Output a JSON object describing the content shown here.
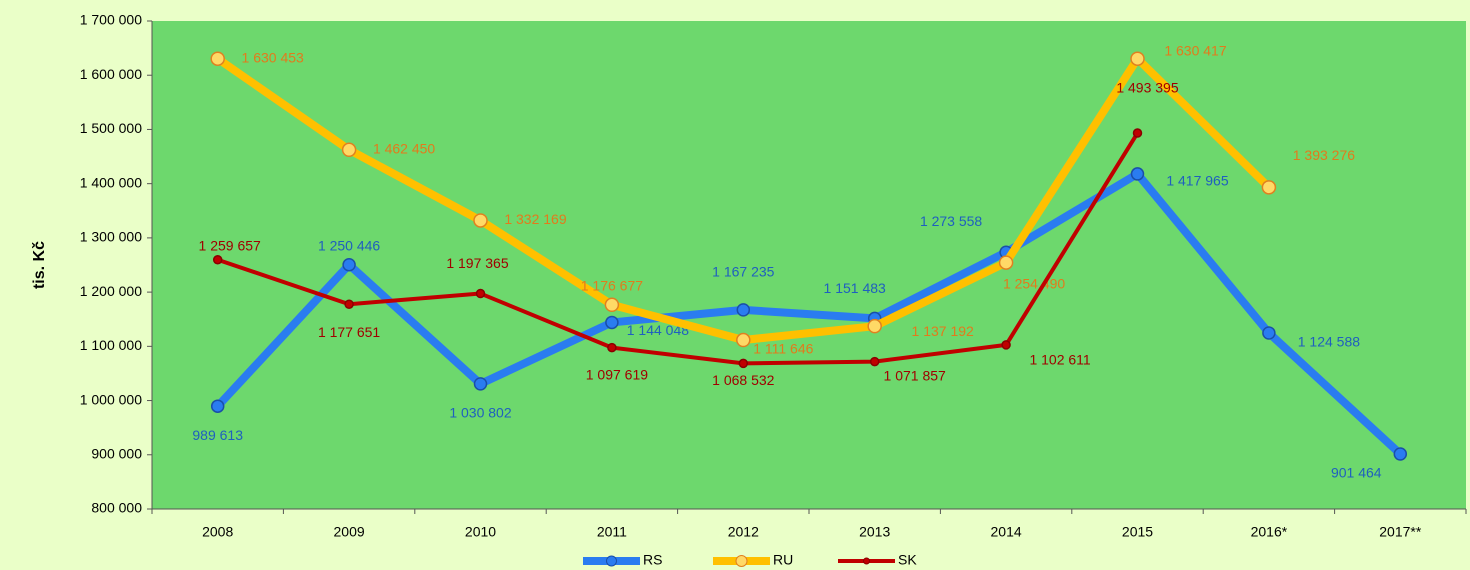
{
  "chart_data": {
    "type": "line",
    "ylabel": "tis. Kč",
    "categories": [
      "2008",
      "2009",
      "2010",
      "2011",
      "2012",
      "2013",
      "2014",
      "2015",
      "2016*",
      "2017**"
    ],
    "series": [
      {
        "name": "RS",
        "color": "#2a7cf0",
        "label_color": "#1f5fbf",
        "values": [
          989613,
          1250446,
          1030802,
          1144048,
          1167235,
          1151483,
          1273558,
          1417965,
          1124588,
          901464
        ],
        "value_labels": [
          "989 613",
          "1 250 446",
          "1 030 802",
          "1 144 048",
          "1 167 235",
          "1 151 483",
          "1 273 558",
          "1 417 965",
          "1 124 588",
          "901 464"
        ]
      },
      {
        "name": "RU",
        "color": "#ffc000",
        "label_color": "#e27a1c",
        "values": [
          1630453,
          1462450,
          1332169,
          1176677,
          1111646,
          1137192,
          1254490,
          1630417,
          1393276,
          null
        ],
        "value_labels": [
          "1 630 453",
          "1 462 450",
          "1 332 169",
          "1 176 677",
          "1 111 646",
          "1 137 192",
          "1 254 490",
          "1 630 417",
          "1 393 276",
          null
        ]
      },
      {
        "name": "SK",
        "color": "#c00000",
        "label_color": "#a00000",
        "values": [
          1259657,
          1177651,
          1197365,
          1097619,
          1068532,
          1071857,
          1102611,
          1493395,
          null,
          null
        ],
        "value_labels": [
          "1 259 657",
          "1 177 651",
          "1 197 365",
          "1 097 619",
          "1 068 532",
          "1 071 857",
          "1 102 611",
          "1 493 395",
          null,
          null
        ]
      }
    ],
    "ylim": [
      800000,
      1700000
    ],
    "yticks": [
      {
        "value": 800000,
        "label": "800 000"
      },
      {
        "value": 900000,
        "label": "900 000"
      },
      {
        "value": 1000000,
        "label": "1 000 000"
      },
      {
        "value": 1100000,
        "label": "1 100 000"
      },
      {
        "value": 1200000,
        "label": "1 200 000"
      },
      {
        "value": 1300000,
        "label": "1 300 000"
      },
      {
        "value": 1400000,
        "label": "1 400 000"
      },
      {
        "value": 1500000,
        "label": "1 500 000"
      },
      {
        "value": 1600000,
        "label": "1 600 000"
      },
      {
        "value": 1700000,
        "label": "1 700 000"
      }
    ],
    "legend": "bottom"
  }
}
